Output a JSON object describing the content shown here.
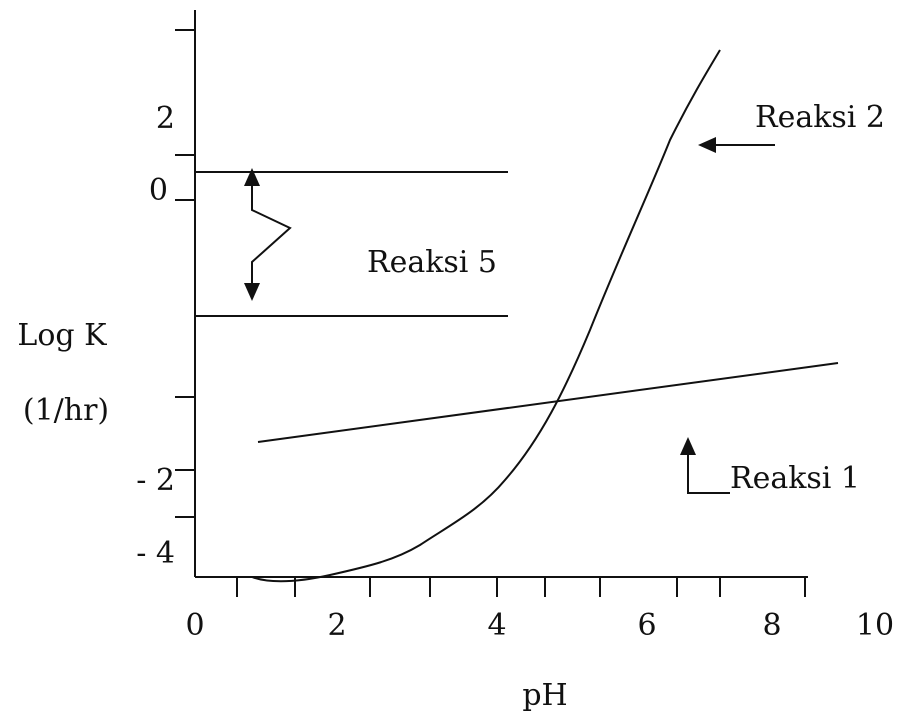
{
  "y_axis": {
    "label": "Log K",
    "unit": "(1/hr)",
    "tick_labels": [
      "2",
      "0",
      "- 2",
      "- 4"
    ]
  },
  "x_axis": {
    "label": "pH",
    "tick_labels": [
      "0",
      "2",
      "4",
      "6",
      "8",
      "10"
    ]
  },
  "annotations": [
    "Reaksi 2",
    "Reaksi 5",
    "Reaksi 1"
  ]
}
